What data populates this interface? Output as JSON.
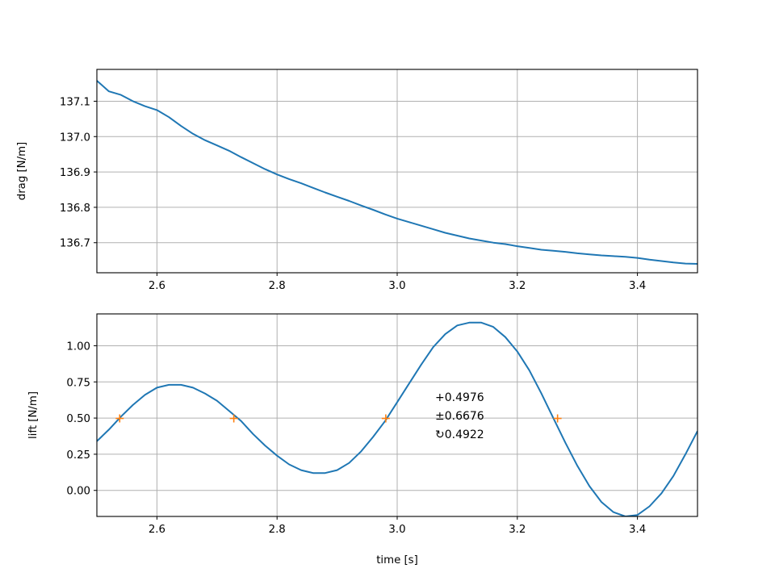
{
  "chart_data": [
    {
      "id": "drag",
      "type": "line",
      "title": "",
      "xlabel": "",
      "ylabel": "drag [N/m]",
      "xlim": [
        2.5,
        3.5
      ],
      "ylim": [
        136.615,
        137.19
      ],
      "grid": true,
      "x_ticks": [
        "2.6",
        "2.8",
        "3.0",
        "3.2",
        "3.4"
      ],
      "y_ticks": [
        "136.7",
        "136.8",
        "136.9",
        "137.0",
        "137.1"
      ],
      "line_color": "#1f77b4",
      "series": [
        {
          "x": [
            2.5,
            2.52,
            2.54,
            2.56,
            2.58,
            2.6,
            2.62,
            2.64,
            2.66,
            2.68,
            2.7,
            2.72,
            2.74,
            2.76,
            2.78,
            2.8,
            2.82,
            2.84,
            2.86,
            2.88,
            2.9,
            2.92,
            2.94,
            2.96,
            2.98,
            3.0,
            3.02,
            3.04,
            3.06,
            3.08,
            3.1,
            3.12,
            3.14,
            3.16,
            3.18,
            3.2,
            3.22,
            3.24,
            3.26,
            3.28,
            3.3,
            3.32,
            3.34,
            3.36,
            3.38,
            3.4,
            3.42,
            3.44,
            3.46,
            3.48,
            3.5
          ],
          "y": [
            137.158,
            137.128,
            137.118,
            137.1,
            137.086,
            137.075,
            137.055,
            137.03,
            137.008,
            136.99,
            136.975,
            136.96,
            136.942,
            136.925,
            136.908,
            136.893,
            136.88,
            136.868,
            136.855,
            136.842,
            136.83,
            136.818,
            136.805,
            136.793,
            136.78,
            136.768,
            136.758,
            136.748,
            136.738,
            136.728,
            136.72,
            136.712,
            136.706,
            136.7,
            136.696,
            136.69,
            136.685,
            136.68,
            136.677,
            136.674,
            136.67,
            136.667,
            136.664,
            136.662,
            136.66,
            136.657,
            136.652,
            136.648,
            136.644,
            136.641,
            136.64
          ]
        }
      ]
    },
    {
      "id": "lift",
      "type": "line",
      "title": "",
      "xlabel": "time [s]",
      "ylabel": "lift [N/m]",
      "xlim": [
        2.5,
        3.5
      ],
      "ylim": [
        -0.18,
        1.22
      ],
      "grid": true,
      "x_ticks": [
        "2.6",
        "2.8",
        "3.0",
        "3.2",
        "3.4"
      ],
      "y_ticks": [
        "0.00",
        "0.25",
        "0.50",
        "0.75",
        "1.00"
      ],
      "line_color": "#1f77b4",
      "marker_color": "#ff7f0e",
      "series": [
        {
          "x": [
            2.5,
            2.52,
            2.54,
            2.56,
            2.58,
            2.6,
            2.62,
            2.64,
            2.66,
            2.68,
            2.7,
            2.72,
            2.74,
            2.76,
            2.78,
            2.8,
            2.82,
            2.84,
            2.86,
            2.88,
            2.9,
            2.92,
            2.94,
            2.96,
            2.98,
            3.0,
            3.02,
            3.04,
            3.06,
            3.08,
            3.1,
            3.12,
            3.14,
            3.16,
            3.18,
            3.2,
            3.22,
            3.24,
            3.26,
            3.28,
            3.3,
            3.32,
            3.34,
            3.36,
            3.38,
            3.4,
            3.42,
            3.44,
            3.46,
            3.48,
            3.5
          ],
          "y": [
            0.34,
            0.42,
            0.51,
            0.59,
            0.66,
            0.71,
            0.73,
            0.73,
            0.71,
            0.67,
            0.62,
            0.55,
            0.48,
            0.39,
            0.31,
            0.24,
            0.18,
            0.14,
            0.12,
            0.12,
            0.14,
            0.19,
            0.27,
            0.37,
            0.48,
            0.61,
            0.74,
            0.87,
            0.99,
            1.08,
            1.14,
            1.16,
            1.16,
            1.13,
            1.06,
            0.96,
            0.83,
            0.67,
            0.5,
            0.33,
            0.17,
            0.03,
            -0.08,
            -0.15,
            -0.18,
            -0.17,
            -0.11,
            -0.02,
            0.1,
            0.25,
            0.41
          ]
        }
      ],
      "markers": {
        "x": [
          2.538,
          2.728,
          2.981,
          3.267
        ],
        "y": [
          0.4976,
          0.4976,
          0.4976,
          0.4976
        ]
      },
      "annotations": [
        "+0.4976",
        "±0.6676",
        "↻0.4922"
      ]
    }
  ]
}
